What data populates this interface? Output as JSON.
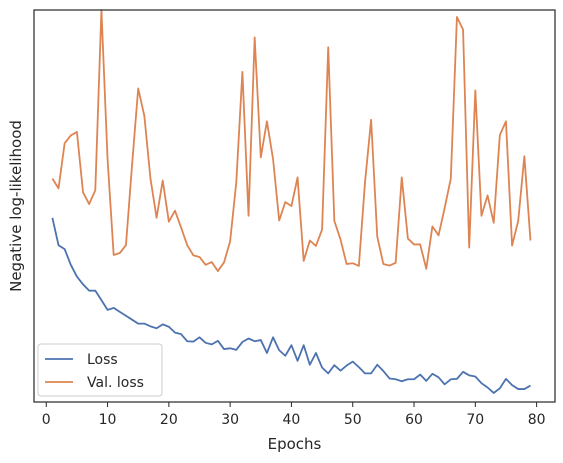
{
  "chart_data": {
    "type": "line",
    "xlabel": "Epochs",
    "ylabel": "Negative log-likelihood",
    "xlim": [
      -2,
      83
    ],
    "ylim": [
      0,
      100
    ],
    "xticks": [
      0,
      10,
      20,
      30,
      40,
      50,
      60,
      70,
      80
    ],
    "grid": false,
    "legend_position": "lower-left",
    "x": [
      1,
      2,
      3,
      4,
      5,
      6,
      7,
      8,
      9,
      10,
      11,
      12,
      13,
      14,
      15,
      16,
      17,
      18,
      19,
      20,
      21,
      22,
      23,
      24,
      25,
      26,
      27,
      28,
      29,
      30,
      31,
      32,
      33,
      34,
      35,
      36,
      37,
      38,
      39,
      40,
      41,
      42,
      43,
      44,
      45,
      46,
      47,
      48,
      49,
      50,
      51,
      52,
      53,
      54,
      55,
      56,
      57,
      58,
      59,
      60,
      61,
      62,
      63,
      64,
      65,
      66,
      67,
      68,
      69,
      70,
      71,
      72,
      73,
      74,
      75,
      76,
      77,
      78,
      79
    ],
    "series": [
      {
        "name": "Loss",
        "color": "#4c72b0",
        "values": [
          47,
          40,
          39,
          35,
          32,
          30,
          28.4,
          28.4,
          26,
          23.5,
          24,
          23,
          22,
          21,
          20,
          20,
          19.3,
          18.8,
          19.8,
          19.2,
          17.7,
          17.3,
          15.5,
          15.4,
          16.5,
          15.1,
          14.7,
          15.6,
          13.5,
          13.7,
          13.3,
          15.3,
          16.2,
          15.5,
          15.8,
          12.5,
          16.5,
          13.2,
          11.8,
          14.5,
          10.5,
          14.5,
          9.5,
          12.5,
          8.8,
          7.3,
          9.4,
          8,
          9.3,
          10.3,
          8.9,
          7.3,
          7.3,
          9.5,
          7.9,
          6,
          5.8,
          5.3,
          5.8,
          5.8,
          7,
          5.4,
          7.2,
          6.3,
          4.5,
          5.8,
          5.9,
          7.7,
          6.8,
          6.5,
          4.8,
          3.7,
          2.3,
          3.5,
          5.9,
          4.3,
          3.3,
          3.3,
          4.2
        ]
      },
      {
        "name": "Val. loss",
        "color": "#dd8452",
        "values": [
          57,
          54.5,
          66,
          68,
          68.9,
          53.5,
          50.5,
          54,
          100,
          62,
          37.5,
          38,
          40,
          60.5,
          80,
          73,
          57,
          47,
          56.5,
          46,
          48.8,
          44.5,
          40,
          37.4,
          37,
          35,
          35.7,
          33.4,
          35.6,
          41,
          56,
          84.2,
          47.5,
          93,
          62.4,
          71.6,
          62,
          46.3,
          51,
          50,
          57.3,
          36,
          41.2,
          39.8,
          44,
          90.5,
          46.2,
          41.5,
          35.2,
          35.4,
          34.7,
          56,
          72,
          42.2,
          35.2,
          34.8,
          35.5,
          57.3,
          41.7,
          40.2,
          40.2,
          34,
          44.8,
          42.5,
          49.5,
          57,
          98.2,
          95,
          39.4,
          79.5,
          47.5,
          52.7,
          45.7,
          68.1,
          71.6,
          39.9,
          46.2,
          62.7,
          41.2
        ]
      }
    ]
  }
}
